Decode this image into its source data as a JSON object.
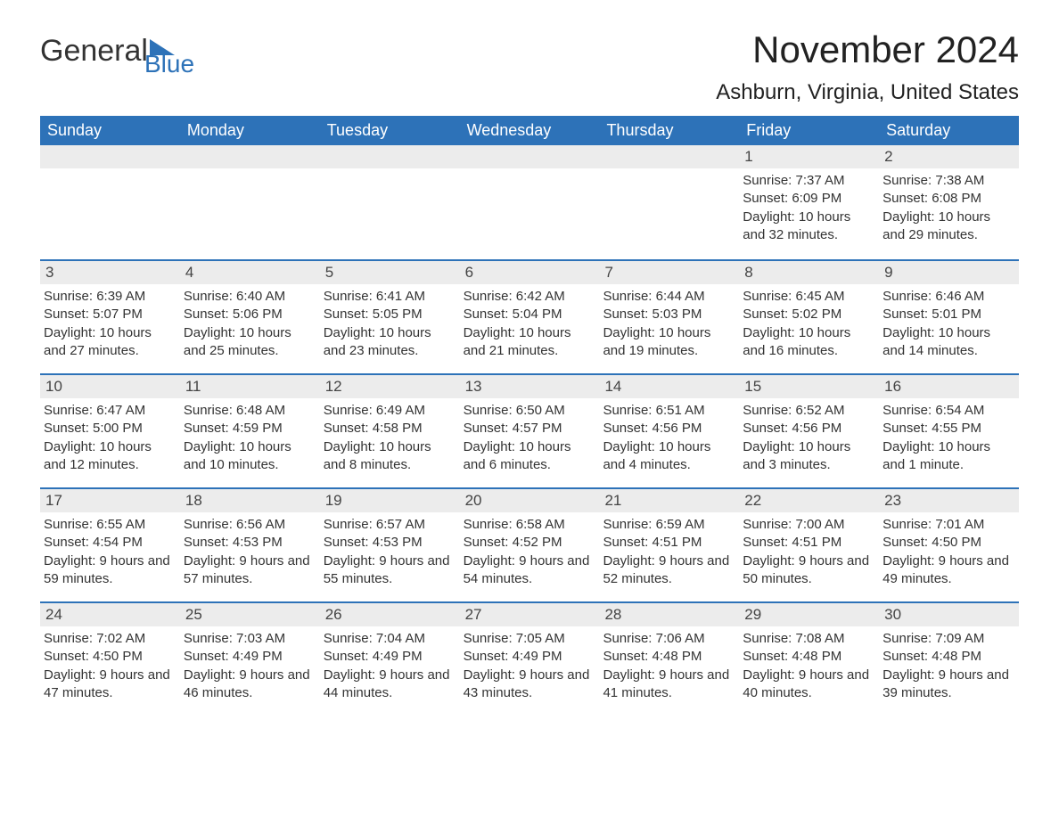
{
  "brand": {
    "part1": "General",
    "part2": "Blue",
    "color": "#2d72b8"
  },
  "title": "November 2024",
  "location": "Ashburn, Virginia, United States",
  "style": {
    "header_bg": "#2d72b8",
    "header_text": "#ffffff",
    "row_border": "#2d72b8",
    "daynum_bg": "#ececec",
    "body_text": "#333333",
    "font_family": "Arial",
    "title_fontsize": 42,
    "location_fontsize": 24,
    "weekday_fontsize": 18,
    "cell_fontsize": 15
  },
  "weekdays": [
    "Sunday",
    "Monday",
    "Tuesday",
    "Wednesday",
    "Thursday",
    "Friday",
    "Saturday"
  ],
  "weeks": [
    [
      {
        "n": "",
        "sr": "",
        "ss": "",
        "dl": ""
      },
      {
        "n": "",
        "sr": "",
        "ss": "",
        "dl": ""
      },
      {
        "n": "",
        "sr": "",
        "ss": "",
        "dl": ""
      },
      {
        "n": "",
        "sr": "",
        "ss": "",
        "dl": ""
      },
      {
        "n": "",
        "sr": "",
        "ss": "",
        "dl": ""
      },
      {
        "n": "1",
        "sr": "Sunrise: 7:37 AM",
        "ss": "Sunset: 6:09 PM",
        "dl": "Daylight: 10 hours and 32 minutes."
      },
      {
        "n": "2",
        "sr": "Sunrise: 7:38 AM",
        "ss": "Sunset: 6:08 PM",
        "dl": "Daylight: 10 hours and 29 minutes."
      }
    ],
    [
      {
        "n": "3",
        "sr": "Sunrise: 6:39 AM",
        "ss": "Sunset: 5:07 PM",
        "dl": "Daylight: 10 hours and 27 minutes."
      },
      {
        "n": "4",
        "sr": "Sunrise: 6:40 AM",
        "ss": "Sunset: 5:06 PM",
        "dl": "Daylight: 10 hours and 25 minutes."
      },
      {
        "n": "5",
        "sr": "Sunrise: 6:41 AM",
        "ss": "Sunset: 5:05 PM",
        "dl": "Daylight: 10 hours and 23 minutes."
      },
      {
        "n": "6",
        "sr": "Sunrise: 6:42 AM",
        "ss": "Sunset: 5:04 PM",
        "dl": "Daylight: 10 hours and 21 minutes."
      },
      {
        "n": "7",
        "sr": "Sunrise: 6:44 AM",
        "ss": "Sunset: 5:03 PM",
        "dl": "Daylight: 10 hours and 19 minutes."
      },
      {
        "n": "8",
        "sr": "Sunrise: 6:45 AM",
        "ss": "Sunset: 5:02 PM",
        "dl": "Daylight: 10 hours and 16 minutes."
      },
      {
        "n": "9",
        "sr": "Sunrise: 6:46 AM",
        "ss": "Sunset: 5:01 PM",
        "dl": "Daylight: 10 hours and 14 minutes."
      }
    ],
    [
      {
        "n": "10",
        "sr": "Sunrise: 6:47 AM",
        "ss": "Sunset: 5:00 PM",
        "dl": "Daylight: 10 hours and 12 minutes."
      },
      {
        "n": "11",
        "sr": "Sunrise: 6:48 AM",
        "ss": "Sunset: 4:59 PM",
        "dl": "Daylight: 10 hours and 10 minutes."
      },
      {
        "n": "12",
        "sr": "Sunrise: 6:49 AM",
        "ss": "Sunset: 4:58 PM",
        "dl": "Daylight: 10 hours and 8 minutes."
      },
      {
        "n": "13",
        "sr": "Sunrise: 6:50 AM",
        "ss": "Sunset: 4:57 PM",
        "dl": "Daylight: 10 hours and 6 minutes."
      },
      {
        "n": "14",
        "sr": "Sunrise: 6:51 AM",
        "ss": "Sunset: 4:56 PM",
        "dl": "Daylight: 10 hours and 4 minutes."
      },
      {
        "n": "15",
        "sr": "Sunrise: 6:52 AM",
        "ss": "Sunset: 4:56 PM",
        "dl": "Daylight: 10 hours and 3 minutes."
      },
      {
        "n": "16",
        "sr": "Sunrise: 6:54 AM",
        "ss": "Sunset: 4:55 PM",
        "dl": "Daylight: 10 hours and 1 minute."
      }
    ],
    [
      {
        "n": "17",
        "sr": "Sunrise: 6:55 AM",
        "ss": "Sunset: 4:54 PM",
        "dl": "Daylight: 9 hours and 59 minutes."
      },
      {
        "n": "18",
        "sr": "Sunrise: 6:56 AM",
        "ss": "Sunset: 4:53 PM",
        "dl": "Daylight: 9 hours and 57 minutes."
      },
      {
        "n": "19",
        "sr": "Sunrise: 6:57 AM",
        "ss": "Sunset: 4:53 PM",
        "dl": "Daylight: 9 hours and 55 minutes."
      },
      {
        "n": "20",
        "sr": "Sunrise: 6:58 AM",
        "ss": "Sunset: 4:52 PM",
        "dl": "Daylight: 9 hours and 54 minutes."
      },
      {
        "n": "21",
        "sr": "Sunrise: 6:59 AM",
        "ss": "Sunset: 4:51 PM",
        "dl": "Daylight: 9 hours and 52 minutes."
      },
      {
        "n": "22",
        "sr": "Sunrise: 7:00 AM",
        "ss": "Sunset: 4:51 PM",
        "dl": "Daylight: 9 hours and 50 minutes."
      },
      {
        "n": "23",
        "sr": "Sunrise: 7:01 AM",
        "ss": "Sunset: 4:50 PM",
        "dl": "Daylight: 9 hours and 49 minutes."
      }
    ],
    [
      {
        "n": "24",
        "sr": "Sunrise: 7:02 AM",
        "ss": "Sunset: 4:50 PM",
        "dl": "Daylight: 9 hours and 47 minutes."
      },
      {
        "n": "25",
        "sr": "Sunrise: 7:03 AM",
        "ss": "Sunset: 4:49 PM",
        "dl": "Daylight: 9 hours and 46 minutes."
      },
      {
        "n": "26",
        "sr": "Sunrise: 7:04 AM",
        "ss": "Sunset: 4:49 PM",
        "dl": "Daylight: 9 hours and 44 minutes."
      },
      {
        "n": "27",
        "sr": "Sunrise: 7:05 AM",
        "ss": "Sunset: 4:49 PM",
        "dl": "Daylight: 9 hours and 43 minutes."
      },
      {
        "n": "28",
        "sr": "Sunrise: 7:06 AM",
        "ss": "Sunset: 4:48 PM",
        "dl": "Daylight: 9 hours and 41 minutes."
      },
      {
        "n": "29",
        "sr": "Sunrise: 7:08 AM",
        "ss": "Sunset: 4:48 PM",
        "dl": "Daylight: 9 hours and 40 minutes."
      },
      {
        "n": "30",
        "sr": "Sunrise: 7:09 AM",
        "ss": "Sunset: 4:48 PM",
        "dl": "Daylight: 9 hours and 39 minutes."
      }
    ]
  ]
}
